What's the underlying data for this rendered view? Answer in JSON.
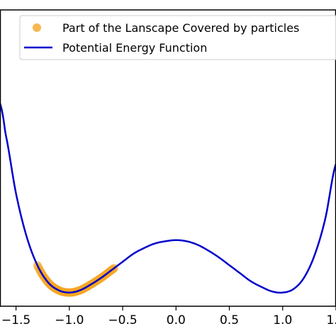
{
  "chart_data": {
    "type": "line",
    "title": "",
    "xlabel": "",
    "ylabel": "",
    "xlim": [
      -1.65,
      1.5
    ],
    "ylim": [
      -0.15,
      2.45
    ],
    "x_ticks": [
      "−1.5",
      "−1.0",
      "−0.5",
      "0.0",
      "0.5",
      "1.0",
      "1.5"
    ],
    "x_tick_values": [
      -1.5,
      -1.0,
      -0.5,
      0.0,
      0.5,
      1.0,
      1.5
    ],
    "grid": false,
    "legend_placement": "top-right",
    "series": [
      {
        "name": "Part of the Lanscape Covered by particles",
        "kind": "scatter",
        "color": "#f5a623",
        "x_range": [
          -1.3,
          -0.58
        ],
        "note_function": "same curve as potential, over the covered x-range"
      },
      {
        "name": "Potential Energy Function",
        "kind": "line",
        "color": "#0000cc",
        "x": [
          -1.65,
          -1.6,
          -1.5,
          -1.4,
          -1.3,
          -1.2,
          -1.1,
          -1.0,
          -0.9,
          -0.8,
          -0.7,
          -0.6,
          -0.5,
          -0.4,
          -0.3,
          -0.2,
          -0.1,
          0.0,
          0.1,
          0.2,
          0.3,
          0.4,
          0.5,
          0.6,
          0.7,
          0.8,
          0.9,
          1.0,
          1.1,
          1.2,
          1.3,
          1.4,
          1.5
        ],
        "y": [
          1.63,
          1.37,
          0.84,
          0.46,
          0.21,
          0.06,
          -0.01,
          -0.03,
          -0.01,
          0.04,
          0.1,
          0.17,
          0.24,
          0.31,
          0.36,
          0.4,
          0.42,
          0.43,
          0.42,
          0.39,
          0.34,
          0.28,
          0.21,
          0.14,
          0.07,
          0.02,
          -0.02,
          -0.03,
          0.0,
          0.1,
          0.3,
          0.62,
          1.1
        ]
      }
    ]
  },
  "colors": {
    "particles": "#f5a623",
    "potential": "#0000cc",
    "axes": "#000000"
  }
}
